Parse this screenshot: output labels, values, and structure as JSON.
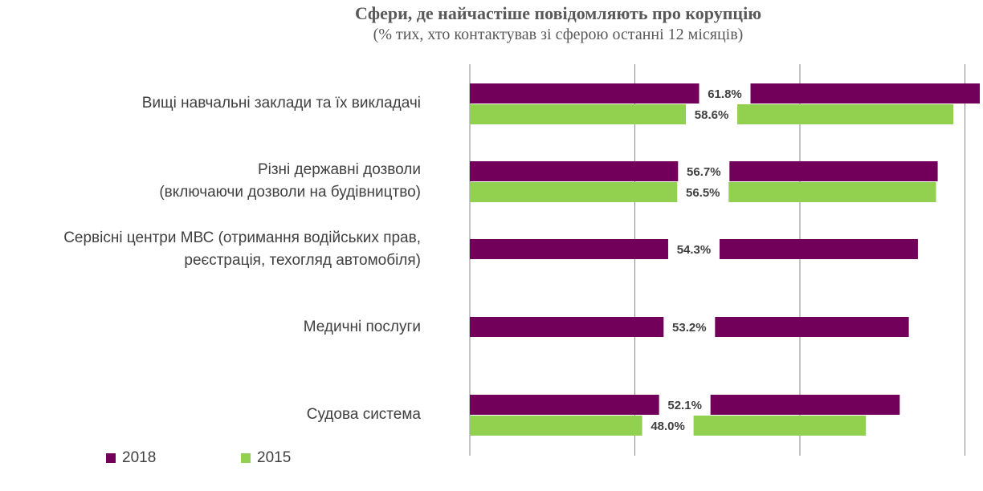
{
  "chart_data": {
    "type": "bar",
    "orientation": "horizontal",
    "title": "Сфери, де найчастіше повідомляють про корупцію",
    "subtitle": "(% тих, хто контактував зі сферою останні 12 місяців)",
    "categories": [
      [
        "Вищі навчальні заклади та їх викладачі"
      ],
      [
        "Різні державні дозволи",
        "(включаючи дозволи на будівництво)"
      ],
      [
        "Сервісні центри МВС (отримання водійських прав,",
        "реєстрація, техогляд автомобіля)"
      ],
      [
        "Медичні послуги"
      ],
      [
        "Судова система"
      ]
    ],
    "series": [
      {
        "name": "2018",
        "color": "#72005A",
        "values": [
          61.8,
          56.7,
          54.3,
          53.2,
          52.1
        ],
        "labels": [
          "61.8%",
          "56.7%",
          "54.3%",
          "53.2%",
          "52.1%"
        ]
      },
      {
        "name": "2015",
        "color": "#92D050",
        "values": [
          58.6,
          56.5,
          null,
          null,
          48.0
        ],
        "labels": [
          "58.6%",
          "56.5%",
          "",
          "",
          "48.0%"
        ]
      }
    ],
    "xlim": [
      0,
      60
    ],
    "grid": true,
    "legend": "bottom-left"
  }
}
